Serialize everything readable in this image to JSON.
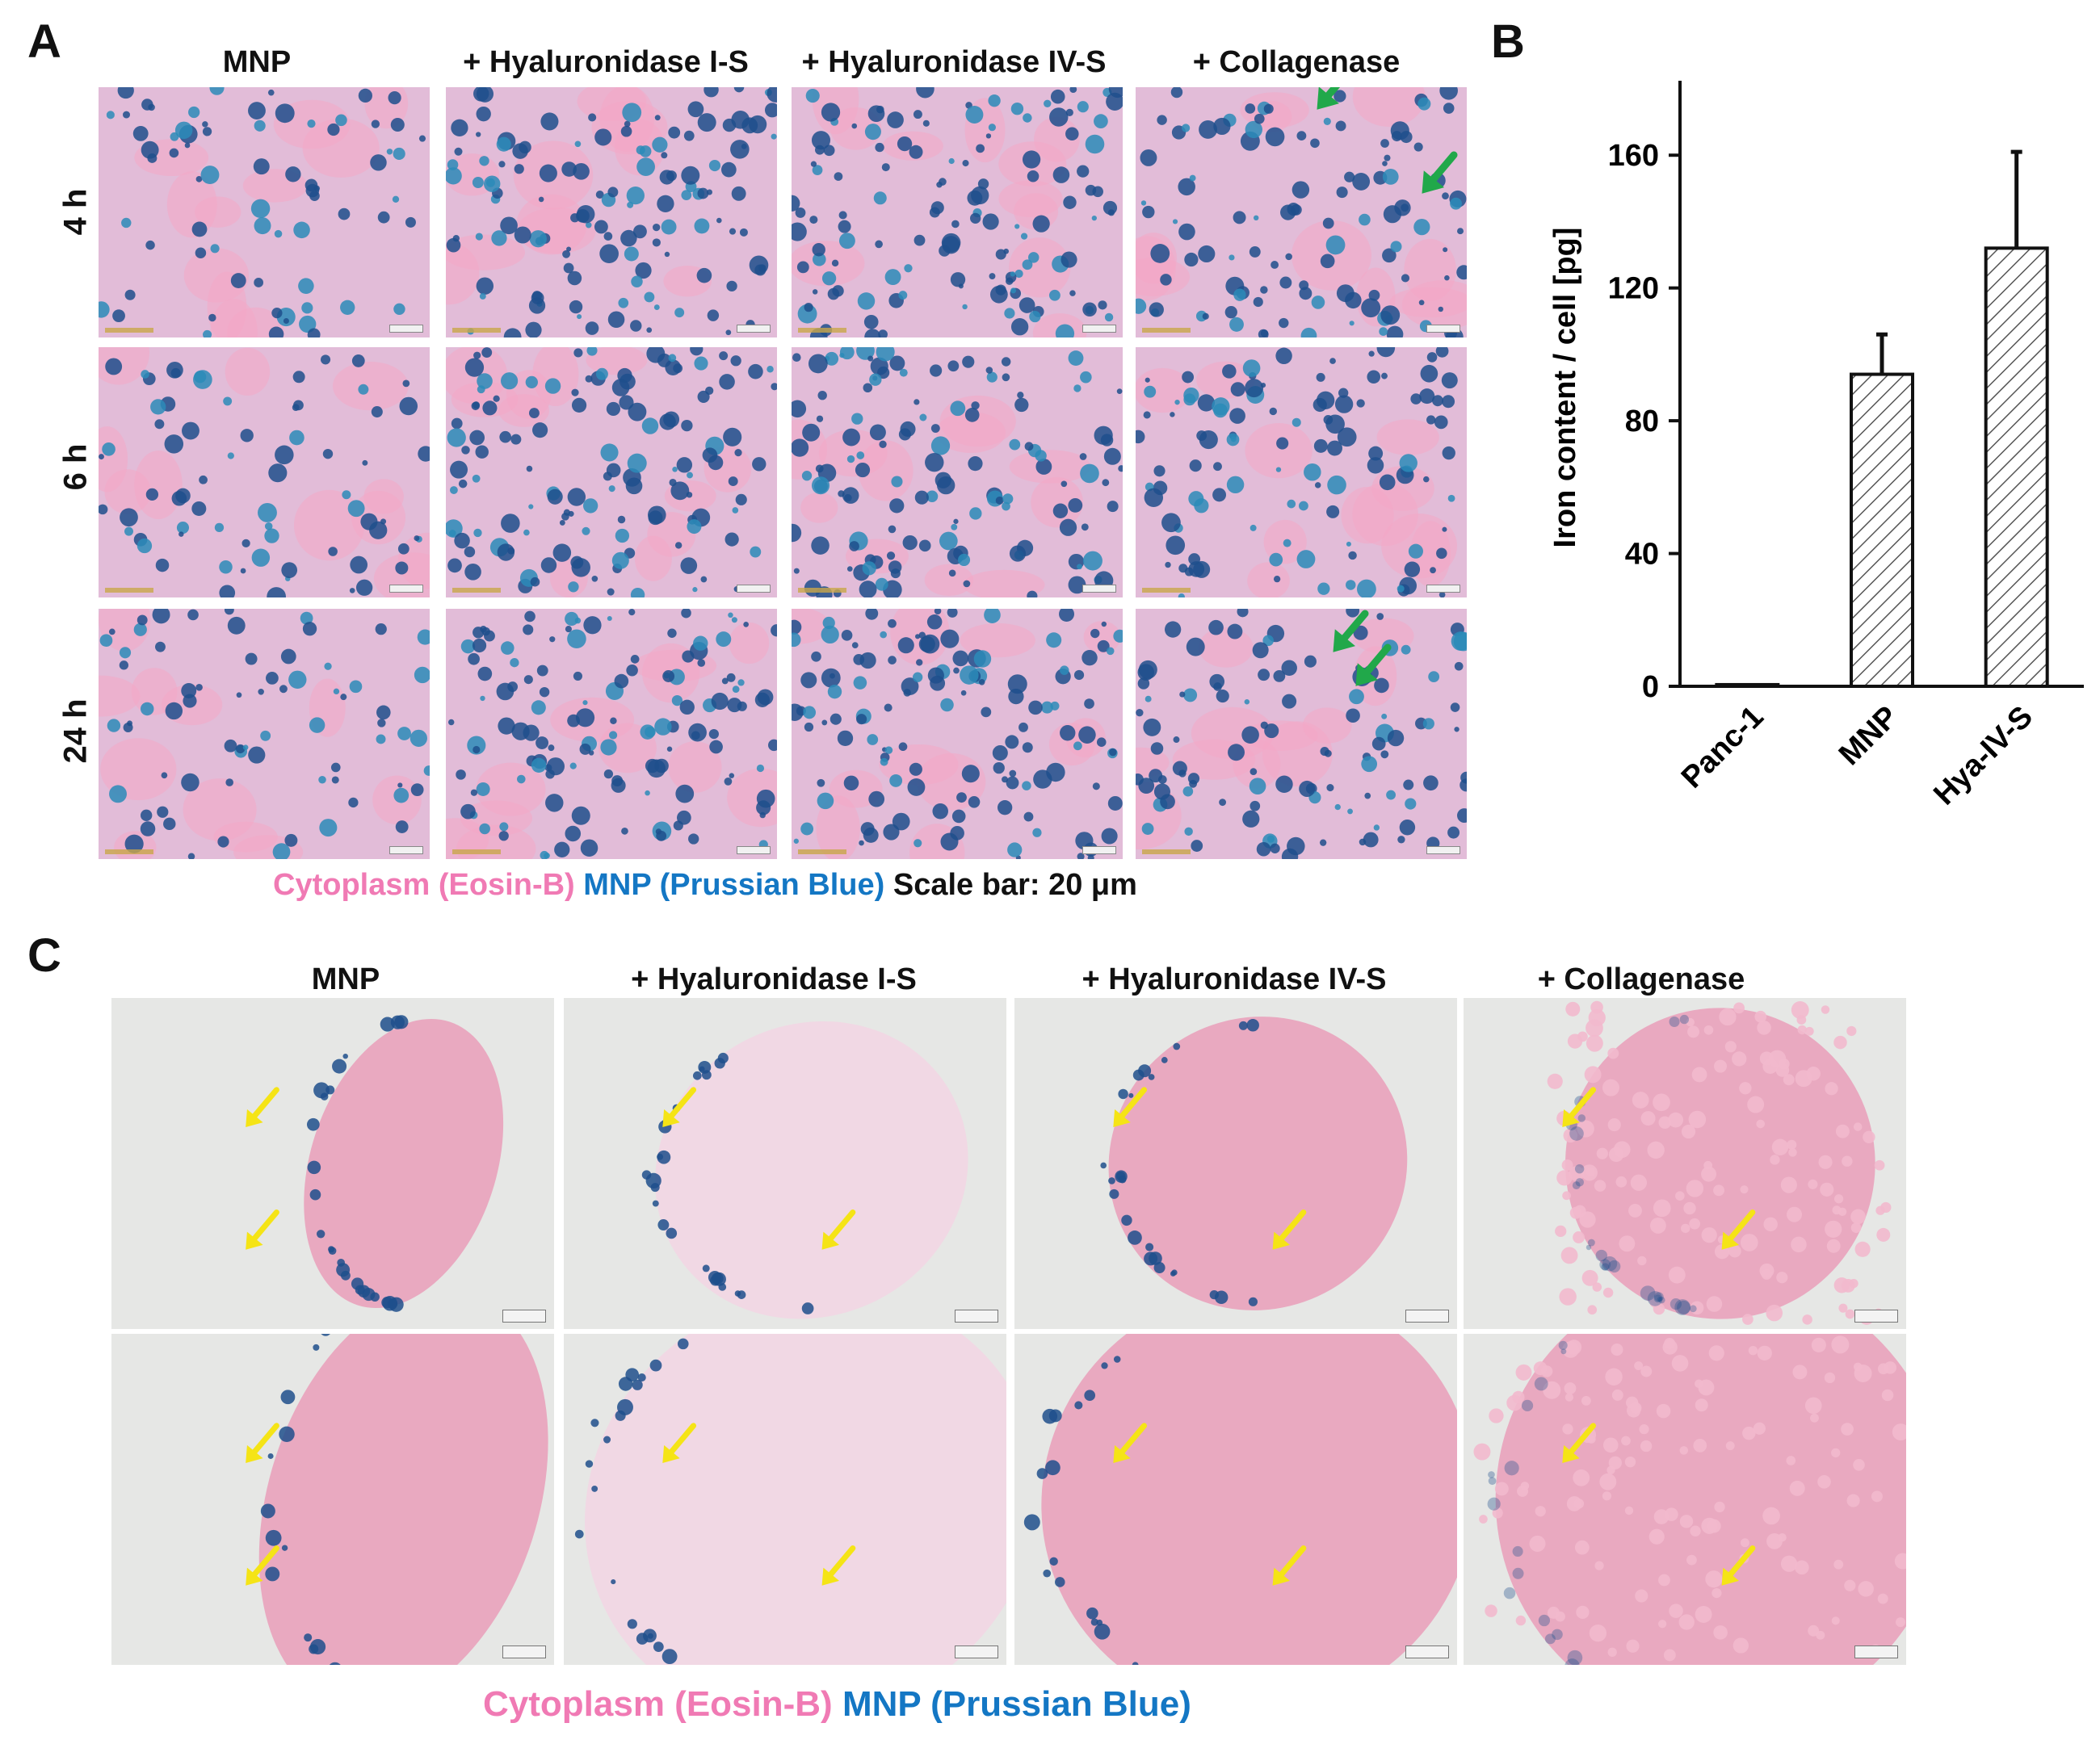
{
  "panel_a": {
    "letter": "A",
    "columns": [
      "MNP",
      "+ Hyaluronidase  I-S",
      "+ Hyaluronidase  IV-S",
      "+ Collagenase"
    ],
    "rows": [
      "4 h",
      "6 h",
      "24 h"
    ],
    "legend": {
      "cytoplasm": "Cytoplasm (Eosin-B)",
      "mnp": "MNP (Prussian Blue)",
      "scale": "Scale bar: 20 μm"
    }
  },
  "panel_b": {
    "letter": "B"
  },
  "panel_c": {
    "letter": "C",
    "columns": [
      "MNP",
      "+ Hyaluronidase  I-S",
      "+ Hyaluronidase  IV-S",
      "+ Collagenase"
    ],
    "legend": {
      "cytoplasm": "Cytoplasm (Eosin-B)",
      "mnp": "MNP (Prussian Blue)"
    }
  },
  "colors": {
    "eosin_pink": "#f07ab4",
    "prussian_blue": "#1477c4",
    "arrow_green": "#21a84a",
    "arrow_yellow": "#f5e416"
  },
  "chart_data": {
    "type": "bar",
    "categories": [
      "Panc-1",
      "MNP",
      "Hya-IV-S"
    ],
    "values": [
      0.5,
      94,
      132
    ],
    "error": [
      0,
      12,
      29
    ],
    "ylabel": "Iron  content / cell [pg]",
    "ylim": [
      0,
      180
    ],
    "yticks": [
      0,
      40,
      80,
      120,
      160
    ],
    "bar_fill": "hatched"
  }
}
